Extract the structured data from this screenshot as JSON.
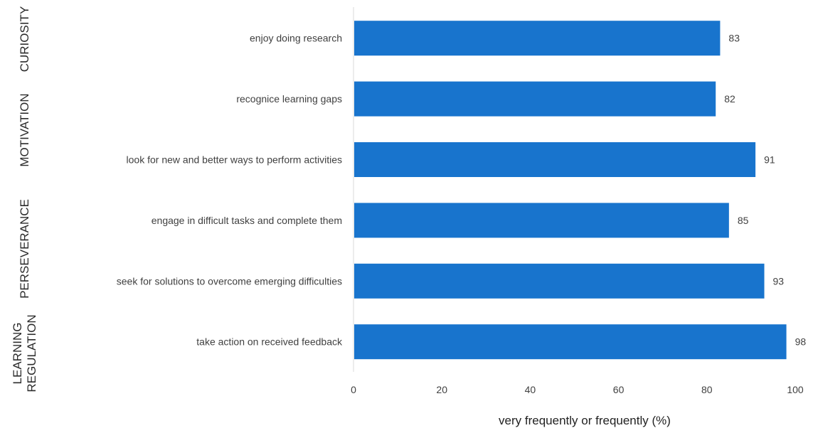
{
  "chart_data": {
    "type": "bar",
    "orientation": "horizontal",
    "categories": [
      "enjoy doing research",
      "recognice learning gaps",
      "look for new and better ways to perform activities",
      "engage in difficult tasks and complete them",
      "seek for solutions to overcome emerging difficulties",
      "take action on received feedback"
    ],
    "values": [
      83,
      82,
      91,
      85,
      93,
      98
    ],
    "value_labels": [
      "83",
      "82",
      "91",
      "85",
      "93",
      "98"
    ],
    "groups": [
      {
        "lines": [
          "CURIOSITY"
        ]
      },
      {
        "lines": [
          "MOTIVATION"
        ]
      },
      {
        "lines": [
          "PERSEVERANCE"
        ]
      },
      {
        "lines": [
          "LEARNING",
          "REGULATION"
        ]
      }
    ],
    "xlabel": "very frequently or frequently (%)",
    "ylabel": "",
    "xlim": [
      0,
      100
    ],
    "xticks": [
      "0",
      "20",
      "40",
      "60",
      "80",
      "100"
    ],
    "grid": false,
    "bar_color": "#1874cd",
    "axis_color": "#d9d9d9"
  }
}
